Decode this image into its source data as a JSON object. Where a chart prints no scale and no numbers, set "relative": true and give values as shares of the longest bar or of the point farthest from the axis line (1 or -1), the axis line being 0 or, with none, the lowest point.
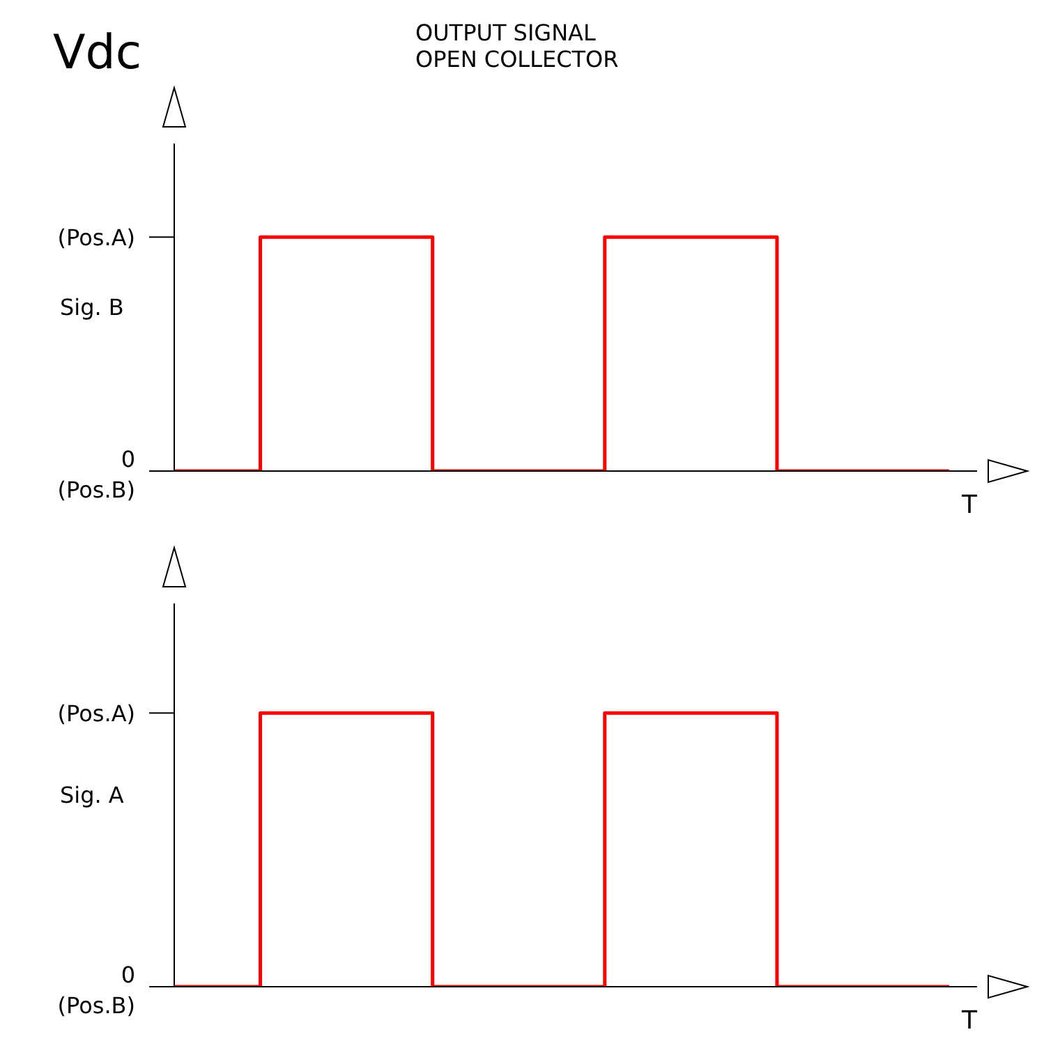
{
  "chart_data": [
    {
      "type": "step",
      "title": "OUTPUT SIGNAL",
      "subtitle": "OPEN COLLECTOR",
      "annotations": [
        "Vdc",
        "0\n(Pos.B)",
        "(Pos.A)"
      ],
      "ylabel": "Sig. B",
      "xlabel": "T",
      "categories": [
        null,
        null,
        null,
        null,
        null,
        null,
        null,
        null,
        null,
        null,
        null,
        null,
        null,
        null,
        null,
        null,
        null,
        null,
        null
      ],
      "series": [
        {
          "color": "#ff0000",
          "values": [
            0,
            0,
            1,
            1,
            1,
            1,
            0,
            0,
            0,
            0,
            1,
            1,
            1,
            1,
            0,
            0,
            0,
            0,
            0
          ]
        }
      ],
      "relative": true,
      "legend": false,
      "marker": "none"
    },
    {
      "type": "step",
      "annotations": [
        "0\n(Pos.B)",
        "(Pos.A)"
      ],
      "ylabel": "Sig. A",
      "xlabel": "T",
      "categories": [
        null,
        null,
        null,
        null,
        null,
        null,
        null,
        null,
        null,
        null,
        null,
        null,
        null,
        null,
        null,
        null,
        null,
        null,
        null
      ],
      "series": [
        {
          "color": "#ff0000",
          "values": [
            0,
            0,
            1,
            1,
            1,
            1,
            0,
            0,
            0,
            0,
            1,
            1,
            1,
            1,
            0,
            0,
            0,
            0,
            0
          ]
        }
      ],
      "relative": true,
      "legend": false,
      "marker": "none"
    }
  ]
}
